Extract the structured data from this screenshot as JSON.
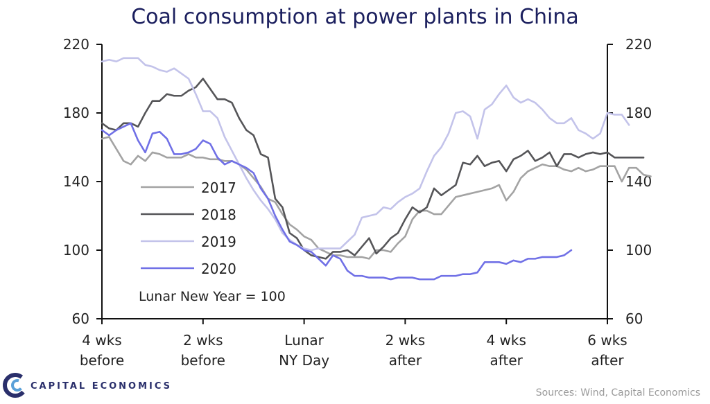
{
  "chart_data": {
    "type": "line",
    "title": "Coal consumption at power plants in China",
    "note": "Lunar  New Year = 100",
    "ylim": [
      60,
      220
    ],
    "yticks": [
      "60",
      "100",
      "140",
      "180",
      "220"
    ],
    "yticks_right": [
      "60",
      "100",
      "140",
      "180",
      "220"
    ],
    "xlim": [
      -28,
      42
    ],
    "xticks": [
      {
        "x": -28,
        "lines": [
          "4 wks",
          "before"
        ]
      },
      {
        "x": -14,
        "lines": [
          "2 wks",
          "before"
        ]
      },
      {
        "x": 0,
        "lines": [
          "Lunar",
          "NY Day"
        ]
      },
      {
        "x": 14,
        "lines": [
          "2 wks",
          "after"
        ]
      },
      {
        "x": 28,
        "lines": [
          "4 wks",
          "after"
        ]
      },
      {
        "x": 42,
        "lines": [
          "6 wks",
          "after"
        ]
      }
    ],
    "x_start": -28,
    "grid": false,
    "legend_position": "lower-left",
    "series": [
      {
        "name": "2017",
        "color": "#a3a3a3",
        "values": [
          165,
          166,
          159,
          152,
          150,
          155,
          152,
          157,
          156,
          154,
          154,
          154,
          156,
          154,
          154,
          153,
          153,
          152,
          152,
          150,
          147,
          142,
          137,
          130,
          128,
          121,
          115,
          112,
          108,
          106,
          101,
          99,
          97,
          97,
          96,
          96,
          96,
          95,
          100,
          100,
          99,
          104,
          108,
          118,
          123,
          123,
          121,
          121,
          126,
          131,
          132,
          133,
          134,
          135,
          136,
          138,
          129,
          134,
          142,
          146,
          148,
          150,
          149,
          149,
          147,
          146,
          148,
          146,
          147,
          149,
          149,
          149,
          140,
          148,
          148,
          144,
          143
        ]
      },
      {
        "name": "2018",
        "color": "#555558",
        "values": [
          174,
          171,
          170,
          174,
          174,
          172,
          180,
          187,
          187,
          191,
          190,
          190,
          193,
          195,
          200,
          194,
          188,
          188,
          186,
          177,
          170,
          167,
          156,
          154,
          130,
          125,
          110,
          107,
          100,
          97,
          96,
          95,
          99,
          99,
          100,
          97,
          102,
          107,
          98,
          102,
          107,
          110,
          118,
          125,
          122,
          125,
          136,
          132,
          135,
          138,
          151,
          150,
          155,
          149,
          151,
          152,
          146,
          153,
          155,
          158,
          152,
          154,
          157,
          149,
          156,
          156,
          154,
          156,
          157,
          156,
          157,
          154,
          154,
          154,
          154,
          154
        ]
      },
      {
        "name": "2019",
        "color": "#c3c3ea",
        "values": [
          210,
          211,
          210,
          212,
          212,
          212,
          208,
          207,
          205,
          204,
          206,
          203,
          200,
          191,
          181,
          181,
          177,
          166,
          158,
          150,
          142,
          135,
          129,
          124,
          118,
          110,
          106,
          103,
          101,
          100,
          101,
          101,
          101,
          101,
          105,
          109,
          119,
          120,
          121,
          125,
          124,
          128,
          131,
          133,
          136,
          146,
          155,
          160,
          168,
          180,
          181,
          178,
          165,
          182,
          185,
          191,
          196,
          189,
          186,
          188,
          186,
          182,
          177,
          174,
          174,
          177,
          170,
          168,
          165,
          168,
          180,
          179,
          179,
          173
        ]
      },
      {
        "name": "2020",
        "color": "#7070e6",
        "values": [
          170,
          167,
          170,
          172,
          174,
          164,
          157,
          168,
          169,
          165,
          156,
          156,
          157,
          159,
          164,
          162,
          154,
          150,
          152,
          150,
          148,
          145,
          136,
          130,
          120,
          112,
          105,
          103,
          100,
          99,
          95,
          91,
          97,
          95,
          88,
          85,
          85,
          84,
          84,
          84,
          83,
          84,
          84,
          84,
          83,
          83,
          83,
          85,
          85,
          85,
          86,
          86,
          87,
          93,
          93,
          93,
          92,
          94,
          93,
          95,
          95,
          96,
          96,
          96,
          97,
          100
        ]
      }
    ]
  },
  "footer": {
    "brand": "CAPITAL ECONOMICS",
    "source": "Sources: Wind, Capital Economics"
  }
}
